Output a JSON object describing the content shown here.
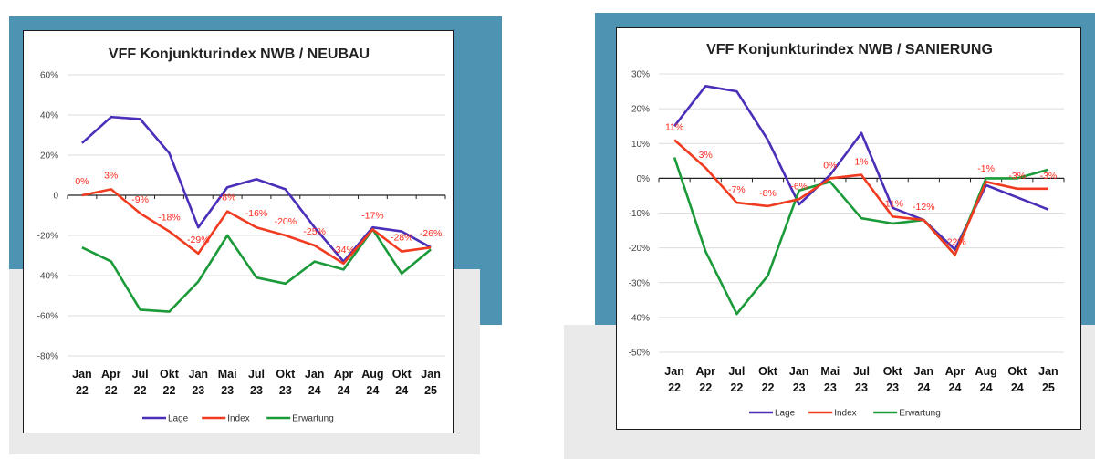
{
  "colors": {
    "lage": "#4b2fb8",
    "index": "#f03b21",
    "erwartung": "#1a9a38",
    "panel_bg_blue": "#4e93b1",
    "panel_bg_gray": "#eaeaea",
    "label_red": "#ff2a1f"
  },
  "chart_data": [
    {
      "type": "line",
      "title": "VFF Konjunkturindex NWB / NEUBAU",
      "categories": [
        "Jan 22",
        "Apr 22",
        "Jul 22",
        "Okt 22",
        "Jan 23",
        "Mai 23",
        "Jul 23",
        "Okt 23",
        "Jan 24",
        "Apr 24",
        "Aug 24",
        "Okt 24",
        "Jan 25"
      ],
      "ylim": [
        -0.8,
        0.6
      ],
      "yticks": [
        0.6,
        0.4,
        0.2,
        0,
        -0.2,
        -0.4,
        -0.6,
        -0.8
      ],
      "ytick_labels": [
        "60%",
        "40%",
        "20%",
        "0",
        "-20%",
        "-40%",
        "-60%",
        "-80%"
      ],
      "grid": true,
      "legend_position": "bottom",
      "series": [
        {
          "name": "Lage",
          "key": "lage",
          "values": [
            0.26,
            0.39,
            0.38,
            0.21,
            -0.16,
            0.04,
            0.08,
            0.03,
            -0.16,
            -0.33,
            -0.16,
            -0.18,
            -0.26
          ]
        },
        {
          "name": "Index",
          "key": "index",
          "values": [
            0.0,
            0.03,
            -0.09,
            -0.18,
            -0.29,
            -0.08,
            -0.16,
            -0.2,
            -0.25,
            -0.34,
            -0.17,
            -0.28,
            -0.26
          ],
          "data_labels": [
            "0%",
            "3%",
            "-9%",
            "-18%",
            "-29%",
            "-8%",
            "-16%",
            "-20%",
            "-25%",
            "-34%",
            "-17%",
            "-28%",
            "-26%"
          ]
        },
        {
          "name": "Erwartung",
          "key": "erwartung",
          "values": [
            -0.26,
            -0.33,
            -0.57,
            -0.58,
            -0.43,
            -0.2,
            -0.41,
            -0.44,
            -0.33,
            -0.37,
            -0.17,
            -0.39,
            -0.27
          ]
        }
      ]
    },
    {
      "type": "line",
      "title": "VFF Konjunkturindex NWB / SANIERUNG",
      "categories": [
        "Jan 22",
        "Apr 22",
        "Jul 22",
        "Okt 22",
        "Jan 23",
        "Mai 23",
        "Jul 23",
        "Okt 23",
        "Jan 24",
        "Apr 24",
        "Aug 24",
        "Okt 24",
        "Jan 25"
      ],
      "ylim": [
        -0.5,
        0.3
      ],
      "yticks": [
        0.3,
        0.2,
        0.1,
        0,
        -0.1,
        -0.2,
        -0.3,
        -0.4,
        -0.5
      ],
      "ytick_labels": [
        "30%",
        "20%",
        "10%",
        "0%",
        "-10%",
        "-20%",
        "-30%",
        "-40%",
        "-50%"
      ],
      "grid": true,
      "legend_position": "bottom",
      "series": [
        {
          "name": "Lage",
          "key": "lage",
          "values": [
            0.15,
            0.265,
            0.25,
            0.11,
            -0.075,
            0.01,
            0.13,
            -0.085,
            -0.12,
            -0.205,
            -0.02,
            -0.055,
            -0.09
          ]
        },
        {
          "name": "Index",
          "key": "index",
          "values": [
            0.11,
            0.03,
            -0.07,
            -0.08,
            -0.06,
            0.0,
            0.01,
            -0.11,
            -0.12,
            -0.22,
            -0.01,
            -0.03,
            -0.03
          ],
          "data_labels": [
            "11%",
            "3%",
            "-7%",
            "-8%",
            "-6%",
            "0%",
            "1%",
            "-11%",
            "-12%",
            "-22%",
            "-1%",
            "-3%",
            "-3%"
          ]
        },
        {
          "name": "Erwartung",
          "key": "erwartung",
          "values": [
            0.06,
            -0.21,
            -0.39,
            -0.28,
            -0.035,
            -0.01,
            -0.115,
            -0.13,
            -0.12,
            -0.22,
            0.0,
            0.0,
            0.025
          ]
        }
      ]
    }
  ]
}
